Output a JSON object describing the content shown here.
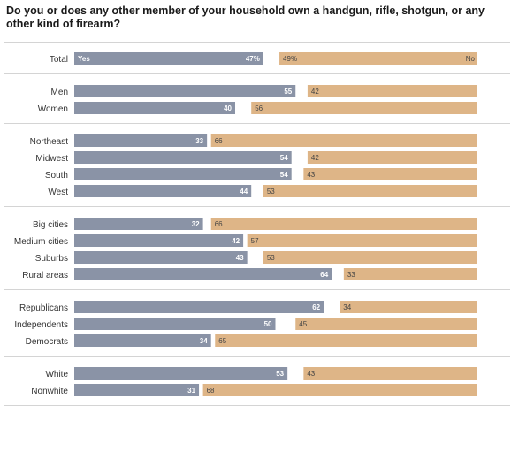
{
  "chart_data": {
    "type": "bar",
    "title": "Do you or does any other member of your household own a handgun, rifle, shotgun, or any other kind of firearm?",
    "legend": {
      "yes_label": "Yes",
      "no_label": "No"
    },
    "colors": {
      "yes": "#8a93a6",
      "no": "#deb587",
      "separator": "#d4d4d4"
    },
    "groups": [
      {
        "rows": [
          {
            "label": "Total",
            "yes": "47%",
            "no": "49%"
          }
        ]
      },
      {
        "rows": [
          {
            "label": "Men",
            "yes": 55,
            "no": 42
          },
          {
            "label": "Women",
            "yes": 40,
            "no": 56
          }
        ]
      },
      {
        "rows": [
          {
            "label": "Northeast",
            "yes": 33,
            "no": 66
          },
          {
            "label": "Midwest",
            "yes": 54,
            "no": 42
          },
          {
            "label": "South",
            "yes": 54,
            "no": 43
          },
          {
            "label": "West",
            "yes": 44,
            "no": 53
          }
        ]
      },
      {
        "rows": [
          {
            "label": "Big cities",
            "yes": 32,
            "no": 66
          },
          {
            "label": "Medium cities",
            "yes": 42,
            "no": 57
          },
          {
            "label": "Suburbs",
            "yes": 43,
            "no": 53
          },
          {
            "label": "Rural areas",
            "yes": 64,
            "no": 33
          }
        ]
      },
      {
        "rows": [
          {
            "label": "Republicans",
            "yes": 62,
            "no": 34
          },
          {
            "label": "Independents",
            "yes": 50,
            "no": 45
          },
          {
            "label": "Democrats",
            "yes": 34,
            "no": 65
          }
        ]
      },
      {
        "rows": [
          {
            "label": "White",
            "yes": 53,
            "no": 43
          },
          {
            "label": "Nonwhite",
            "yes": 31,
            "no": 68
          }
        ]
      }
    ]
  }
}
